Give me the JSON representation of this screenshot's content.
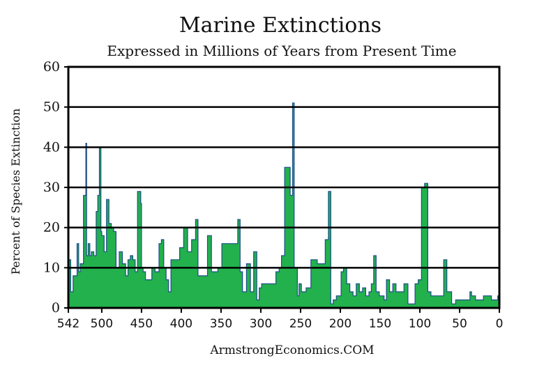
{
  "chart_data": {
    "type": "area",
    "title": "Marine Extinctions",
    "subtitle": "Expressed in Millions of Years from Present Time",
    "ylabel": "Percent of Species Extinction",
    "xlabel": "",
    "source": "ArmstrongEconomics.COM",
    "xlim": [
      542,
      0
    ],
    "ylim": [
      0,
      60
    ],
    "x_ticks": [
      542,
      500,
      450,
      400,
      350,
      300,
      250,
      200,
      150,
      100,
      50,
      0
    ],
    "x_tick_labels": [
      "542",
      "500",
      "450",
      "400",
      "350",
      "300",
      "250",
      "200",
      "150",
      "100",
      "50",
      "0"
    ],
    "y_ticks": [
      0,
      10,
      20,
      30,
      40,
      50,
      60
    ],
    "y_tick_labels": [
      "0",
      "10",
      "20",
      "30",
      "40",
      "50",
      "60"
    ],
    "grid": "horizontal",
    "colors": {
      "fill": "#22b14c",
      "line": "#1f4e8c",
      "grid": "#000000"
    },
    "series": [
      {
        "x": [
          542,
          539,
          536,
          531,
          529,
          527,
          523,
          520,
          519,
          517,
          515,
          513,
          510,
          507,
          505,
          503,
          501,
          500,
          497,
          494,
          491,
          489,
          488,
          485,
          482,
          478,
          474,
          470,
          467,
          464,
          461,
          458,
          455,
          451,
          450,
          448,
          445,
          443,
          440,
          437,
          433,
          428,
          425,
          422,
          419,
          416,
          413,
          410,
          407,
          402,
          397,
          392,
          387,
          382,
          379,
          376,
          372,
          367,
          362,
          360,
          357,
          354,
          349,
          344,
          339,
          334,
          329,
          326,
          323,
          318,
          313,
          309,
          305,
          302,
          299,
          296,
          291,
          286,
          281,
          277,
          274,
          270,
          266,
          263,
          260,
          258,
          254,
          252,
          249,
          246,
          243,
          240,
          237,
          233,
          229,
          224,
          219,
          215,
          212,
          209,
          205,
          201,
          199,
          196,
          192,
          188,
          184,
          180,
          176,
          172,
          168,
          164,
          161,
          158,
          155,
          151,
          147,
          145,
          142,
          138,
          134,
          130,
          125,
          120,
          115,
          110,
          106,
          102,
          98,
          94,
          90,
          86,
          82,
          78,
          74,
          70,
          66,
          63,
          60,
          55,
          50,
          45,
          40,
          37,
          35,
          30,
          25,
          20,
          15,
          10,
          5,
          2,
          0
        ],
        "y": [
          12,
          4,
          8,
          16,
          9,
          11,
          28,
          41,
          13,
          16,
          13,
          14,
          13,
          24,
          28,
          40,
          19,
          18,
          14,
          27,
          21,
          21,
          20,
          19,
          10,
          14,
          11,
          8,
          12,
          13,
          12,
          9,
          29,
          26,
          10,
          9,
          7,
          7,
          7,
          10,
          9,
          16,
          17,
          10,
          7,
          4,
          12,
          12,
          12,
          15,
          20,
          14,
          17,
          22,
          8,
          8,
          8,
          18,
          9,
          9,
          9,
          10,
          16,
          16,
          16,
          16,
          22,
          9,
          4,
          11,
          4,
          14,
          2,
          5,
          6,
          6,
          6,
          6,
          9,
          10,
          13,
          35,
          35,
          28,
          51,
          10,
          3,
          6,
          4,
          4,
          5,
          5,
          12,
          12,
          11,
          11,
          17,
          29,
          1,
          2,
          3,
          3,
          9,
          10,
          6,
          4,
          3,
          6,
          4,
          5,
          3,
          4,
          6,
          13,
          4,
          3,
          3,
          2,
          7,
          4,
          6,
          4,
          4,
          6,
          1,
          1,
          6,
          7,
          30,
          31,
          4,
          3,
          3,
          3,
          3,
          12,
          4,
          4,
          1,
          2,
          2,
          2,
          2,
          4,
          3,
          2,
          2,
          3,
          3,
          2,
          2,
          3,
          3
        ]
      }
    ]
  }
}
